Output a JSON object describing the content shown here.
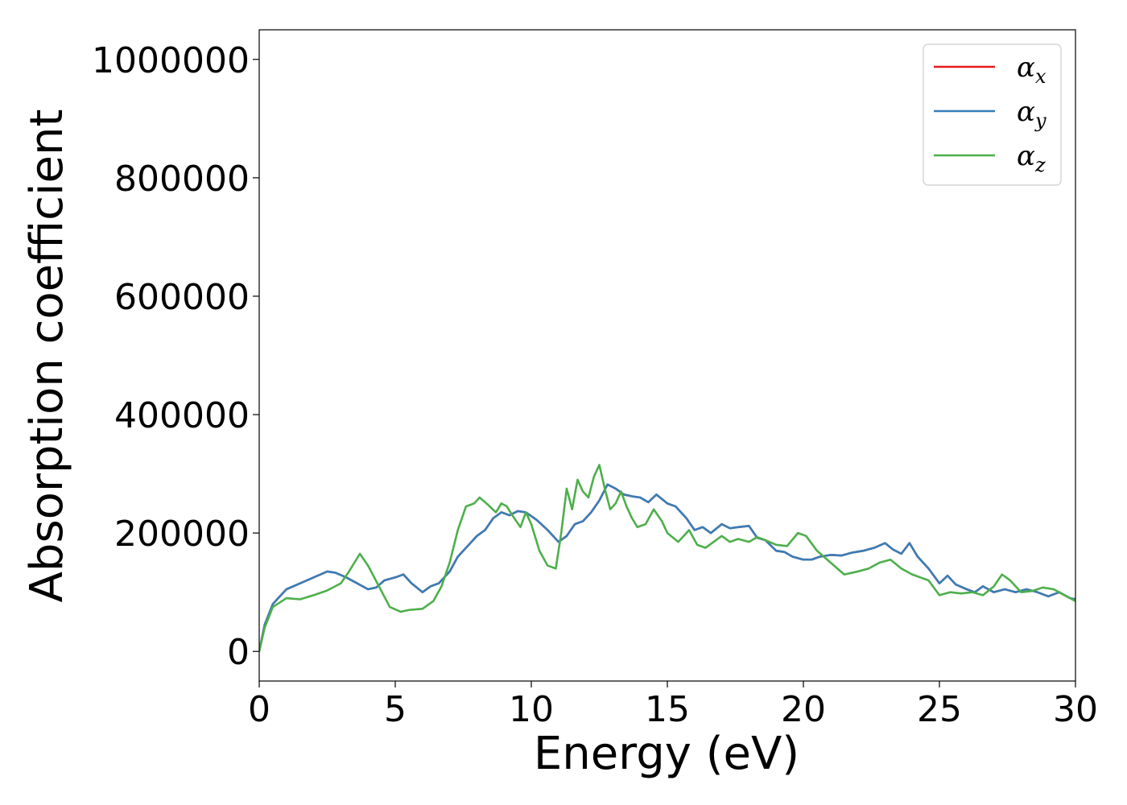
{
  "chart_data": {
    "type": "line",
    "title": "",
    "xlabel": "Energy (eV)",
    "ylabel": "Absorption coefficient",
    "xlim": [
      0,
      30
    ],
    "ylim": [
      -50000,
      1050000
    ],
    "xticks": [
      0,
      5,
      10,
      15,
      20,
      25,
      30
    ],
    "xtick_labels": [
      "0",
      "5",
      "10",
      "15",
      "20",
      "25",
      "30"
    ],
    "yticks": [
      0,
      200000,
      400000,
      600000,
      800000,
      1000000
    ],
    "ytick_labels": [
      "0",
      "200000",
      "400000",
      "600000",
      "800000",
      "1000000"
    ],
    "grid": false,
    "legend_position": "top-right",
    "series": [
      {
        "name": "α_x",
        "legend_symbol": "α",
        "legend_sub": "x",
        "color": "#e41a1c",
        "x": [
          0,
          0.2,
          0.5,
          1,
          1.5,
          2,
          2.5,
          2.8,
          3.2,
          3.6,
          4,
          4.3,
          4.6,
          5,
          5.3,
          5.6,
          6,
          6.3,
          6.6,
          7,
          7.3,
          7.7,
          8,
          8.3,
          8.6,
          8.9,
          9.2,
          9.5,
          9.8,
          10.2,
          10.6,
          11,
          11.3,
          11.6,
          11.9,
          12.2,
          12.5,
          12.8,
          13.1,
          13.4,
          13.7,
          14,
          14.3,
          14.6,
          15,
          15.3,
          15.7,
          16,
          16.3,
          16.6,
          17,
          17.3,
          17.6,
          18,
          18.3,
          18.6,
          19,
          19.3,
          19.6,
          20,
          20.3,
          20.6,
          21,
          21.4,
          21.8,
          22.2,
          22.6,
          23,
          23.3,
          23.6,
          23.9,
          24.2,
          24.6,
          25,
          25.3,
          25.6,
          26,
          26.3,
          26.6,
          27,
          27.4,
          27.8,
          28.2,
          28.6,
          29,
          29.4,
          29.8,
          30
        ],
        "y": [
          0,
          45000,
          80000,
          105000,
          115000,
          125000,
          135000,
          133000,
          125000,
          115000,
          105000,
          108000,
          120000,
          125000,
          130000,
          115000,
          100000,
          110000,
          115000,
          135000,
          160000,
          180000,
          195000,
          205000,
          225000,
          235000,
          230000,
          237000,
          235000,
          222000,
          205000,
          185000,
          195000,
          215000,
          220000,
          235000,
          255000,
          282000,
          275000,
          265000,
          262000,
          260000,
          252000,
          265000,
          250000,
          245000,
          225000,
          205000,
          210000,
          200000,
          215000,
          208000,
          210000,
          212000,
          192000,
          188000,
          170000,
          168000,
          160000,
          155000,
          155000,
          160000,
          163000,
          162000,
          167000,
          170000,
          175000,
          183000,
          172000,
          165000,
          183000,
          160000,
          140000,
          115000,
          128000,
          113000,
          105000,
          100000,
          110000,
          100000,
          105000,
          100000,
          105000,
          100000,
          93000,
          100000,
          90000,
          88000
        ]
      },
      {
        "name": "α_y",
        "legend_symbol": "α",
        "legend_sub": "y",
        "color": "#377eb8",
        "x": [
          0,
          0.2,
          0.5,
          1,
          1.5,
          2,
          2.5,
          2.8,
          3.2,
          3.6,
          4,
          4.3,
          4.6,
          5,
          5.3,
          5.6,
          6,
          6.3,
          6.6,
          7,
          7.3,
          7.7,
          8,
          8.3,
          8.6,
          8.9,
          9.2,
          9.5,
          9.8,
          10.2,
          10.6,
          11,
          11.3,
          11.6,
          11.9,
          12.2,
          12.5,
          12.8,
          13.1,
          13.4,
          13.7,
          14,
          14.3,
          14.6,
          15,
          15.3,
          15.7,
          16,
          16.3,
          16.6,
          17,
          17.3,
          17.6,
          18,
          18.3,
          18.6,
          19,
          19.3,
          19.6,
          20,
          20.3,
          20.6,
          21,
          21.4,
          21.8,
          22.2,
          22.6,
          23,
          23.3,
          23.6,
          23.9,
          24.2,
          24.6,
          25,
          25.3,
          25.6,
          26,
          26.3,
          26.6,
          27,
          27.4,
          27.8,
          28.2,
          28.6,
          29,
          29.4,
          29.8,
          30
        ],
        "y": [
          0,
          45000,
          80000,
          105000,
          115000,
          125000,
          135000,
          133000,
          125000,
          115000,
          105000,
          108000,
          120000,
          125000,
          130000,
          115000,
          100000,
          110000,
          115000,
          135000,
          160000,
          180000,
          195000,
          205000,
          225000,
          235000,
          230000,
          237000,
          235000,
          222000,
          205000,
          185000,
          195000,
          215000,
          220000,
          235000,
          255000,
          282000,
          275000,
          265000,
          262000,
          260000,
          252000,
          265000,
          250000,
          245000,
          225000,
          205000,
          210000,
          200000,
          215000,
          208000,
          210000,
          212000,
          192000,
          188000,
          170000,
          168000,
          160000,
          155000,
          155000,
          160000,
          163000,
          162000,
          167000,
          170000,
          175000,
          183000,
          172000,
          165000,
          183000,
          160000,
          140000,
          115000,
          128000,
          113000,
          105000,
          100000,
          110000,
          100000,
          105000,
          100000,
          105000,
          100000,
          93000,
          100000,
          90000,
          88000
        ]
      },
      {
        "name": "α_z",
        "legend_symbol": "α",
        "legend_sub": "z",
        "color": "#4daf4a",
        "x": [
          0,
          0.2,
          0.5,
          1,
          1.5,
          2,
          2.5,
          3,
          3.3,
          3.7,
          4,
          4.4,
          4.8,
          5.2,
          5.5,
          6,
          6.4,
          6.7,
          7,
          7.3,
          7.6,
          7.9,
          8.1,
          8.4,
          8.7,
          8.9,
          9.1,
          9.3,
          9.6,
          9.8,
          10,
          10.3,
          10.6,
          10.9,
          11.1,
          11.3,
          11.5,
          11.7,
          11.9,
          12.1,
          12.3,
          12.5,
          12.7,
          12.9,
          13.1,
          13.3,
          13.5,
          13.7,
          13.9,
          14.2,
          14.5,
          14.8,
          15,
          15.4,
          15.8,
          16.1,
          16.4,
          16.7,
          17,
          17.3,
          17.6,
          18,
          18.3,
          18.6,
          19,
          19.4,
          19.8,
          20.1,
          20.5,
          21,
          21.5,
          22,
          22.4,
          22.8,
          23.2,
          23.6,
          24,
          24.3,
          24.6,
          25,
          25.4,
          25.8,
          26.2,
          26.6,
          27,
          27.3,
          27.6,
          28,
          28.4,
          28.8,
          29.2,
          29.6,
          30
        ],
        "y": [
          0,
          40000,
          75000,
          90000,
          88000,
          95000,
          103000,
          115000,
          135000,
          165000,
          145000,
          110000,
          75000,
          67000,
          70000,
          72000,
          85000,
          110000,
          150000,
          205000,
          245000,
          250000,
          260000,
          248000,
          235000,
          250000,
          245000,
          230000,
          210000,
          235000,
          215000,
          170000,
          145000,
          140000,
          200000,
          275000,
          240000,
          290000,
          270000,
          260000,
          295000,
          315000,
          275000,
          240000,
          250000,
          270000,
          245000,
          225000,
          210000,
          215000,
          240000,
          220000,
          200000,
          185000,
          205000,
          180000,
          175000,
          185000,
          195000,
          185000,
          190000,
          185000,
          193000,
          188000,
          180000,
          178000,
          200000,
          195000,
          170000,
          150000,
          130000,
          135000,
          140000,
          150000,
          155000,
          140000,
          130000,
          125000,
          120000,
          95000,
          100000,
          98000,
          100000,
          95000,
          110000,
          130000,
          120000,
          100000,
          102000,
          108000,
          105000,
          95000,
          85000
        ]
      }
    ]
  }
}
